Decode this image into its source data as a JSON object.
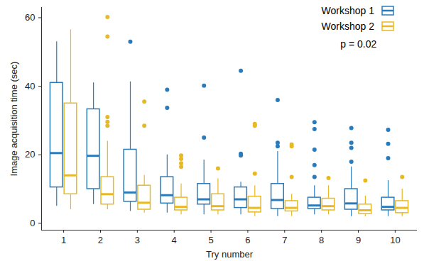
{
  "chart_data": {
    "type": "boxplot",
    "x_label": "Try number",
    "y_label": "Image acquisition time (sec)",
    "annotation": "p = 0.02",
    "legend": "top-right",
    "x": [
      1,
      2,
      3,
      4,
      5,
      6,
      7,
      8,
      9,
      10
    ],
    "xlim": [
      0.4,
      10.6
    ],
    "xticks": [
      1,
      2,
      3,
      4,
      5,
      6,
      7,
      8,
      9,
      10
    ],
    "ylim": [
      -2,
      63
    ],
    "yticks": [
      0,
      20,
      40,
      60
    ],
    "series": [
      {
        "name": "Workshop 1",
        "color": "#2b7bba",
        "whisker_low": [
          5,
          5.5,
          3.5,
          3,
          2.5,
          2.5,
          2,
          2.5,
          2,
          2
        ],
        "q1": [
          10.5,
          10,
          6.3,
          5.8,
          5.5,
          4.5,
          4.2,
          4.2,
          4,
          3.8
        ],
        "median": [
          20.5,
          19.7,
          9,
          8.2,
          7,
          7,
          6.8,
          5.2,
          5.8,
          4.8
        ],
        "q3": [
          41,
          33.3,
          21.5,
          13.5,
          11.5,
          10.5,
          11.5,
          7.5,
          10,
          7.5
        ],
        "whisker_high": [
          53,
          41,
          41.3,
          20,
          18.5,
          12,
          21,
          11,
          16.5,
          12.5
        ],
        "outliers": [
          [],
          [],
          [
            53
          ],
          [
            39,
            33.7
          ],
          [
            40.2,
            25
          ],
          [
            44.5,
            20.3,
            19.8
          ],
          [
            36,
            23.5,
            22.5
          ],
          [
            29.5,
            27.5,
            21.5,
            17,
            13.5
          ],
          [
            27.8,
            23.5,
            22,
            18
          ],
          [
            27.3,
            23.2,
            19
          ]
        ]
      },
      {
        "name": "Workshop 2",
        "color": "#e8b923",
        "whisker_low": [
          4,
          4,
          3,
          2.5,
          2.5,
          2,
          2,
          2.5,
          2,
          2
        ],
        "q1": [
          8.5,
          5.5,
          4,
          3.8,
          3.8,
          3.2,
          3.5,
          3.8,
          2.7,
          3
        ],
        "median": [
          14,
          8.5,
          6,
          4.8,
          5,
          4.5,
          4.5,
          5,
          3.8,
          4.5
        ],
        "q3": [
          35,
          13.5,
          11,
          7.5,
          8.5,
          7.8,
          6.5,
          7.2,
          5.5,
          6.5
        ],
        "whisker_high": [
          56.5,
          24,
          14,
          11.5,
          13,
          11,
          8.5,
          11,
          8,
          10
        ],
        "outliers": [
          [],
          [
            60.2,
            54.5,
            31,
            29.6,
            28.5
          ],
          [
            35.5,
            28.5
          ],
          [
            19.8,
            18.8,
            17.5,
            16.5
          ],
          [
            16
          ],
          [
            29,
            28.5,
            14.5
          ],
          [
            23,
            22.5,
            13.5
          ],
          [
            13.2
          ],
          [
            12.5
          ],
          [
            13.5
          ]
        ]
      }
    ]
  }
}
